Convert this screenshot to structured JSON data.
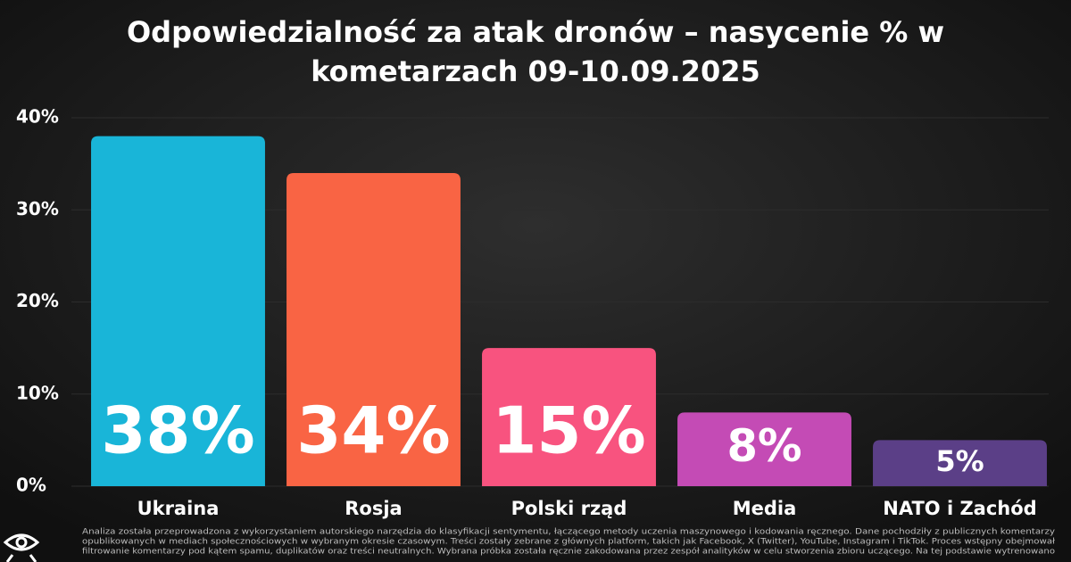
{
  "chart_data": {
    "type": "bar",
    "title": [
      "Odpowiedzialność za atak dronów – nasycenie % w",
      "kometarzach 09-10.09.2025"
    ],
    "categories": [
      "Ukraina",
      "Rosja",
      "Polski rząd",
      "Media",
      "NATO i Zachód"
    ],
    "values": [
      38,
      34,
      15,
      8,
      5
    ],
    "value_labels": [
      "38%",
      "34%",
      "15%",
      "8%",
      "5%"
    ],
    "colors": [
      "#19b5d8",
      "#f96444",
      "#f8537f",
      "#c44bb5",
      "#5b3f87"
    ],
    "ylim": [
      0,
      40
    ],
    "yticks": [
      {
        "value": 0,
        "label": "0%"
      },
      {
        "value": 10,
        "label": "10%"
      },
      {
        "value": 20,
        "label": "20%"
      },
      {
        "value": 30,
        "label": "30%"
      },
      {
        "value": 40,
        "label": "40%"
      }
    ],
    "grid": true,
    "footnote": [
      "Analiza została przeprowadzona z wykorzystaniem autorskiego narzędzia do klasyfikacji sentymentu, łączącego metody uczenia maszynowego i kodowania ręcznego. Dane pochodziły z publicznych komentarzy",
      "opublikowanych w mediach społecznościowych w wybranym okresie czasowym. Treści zostały zebrane z głównych platform, takich jak Facebook, X (Twitter), YouTube, Instagram i TikTok. Proces wstępny obejmował",
      "filtrowanie komentarzy pod kątem spamu, duplikatów oraz treści neutralnych. Wybrana próbka została ręcznie zakodowana przez zespół analityków w celu stworzenia zbioru uczącego. Na tej podstawie wytrenowano"
    ]
  }
}
